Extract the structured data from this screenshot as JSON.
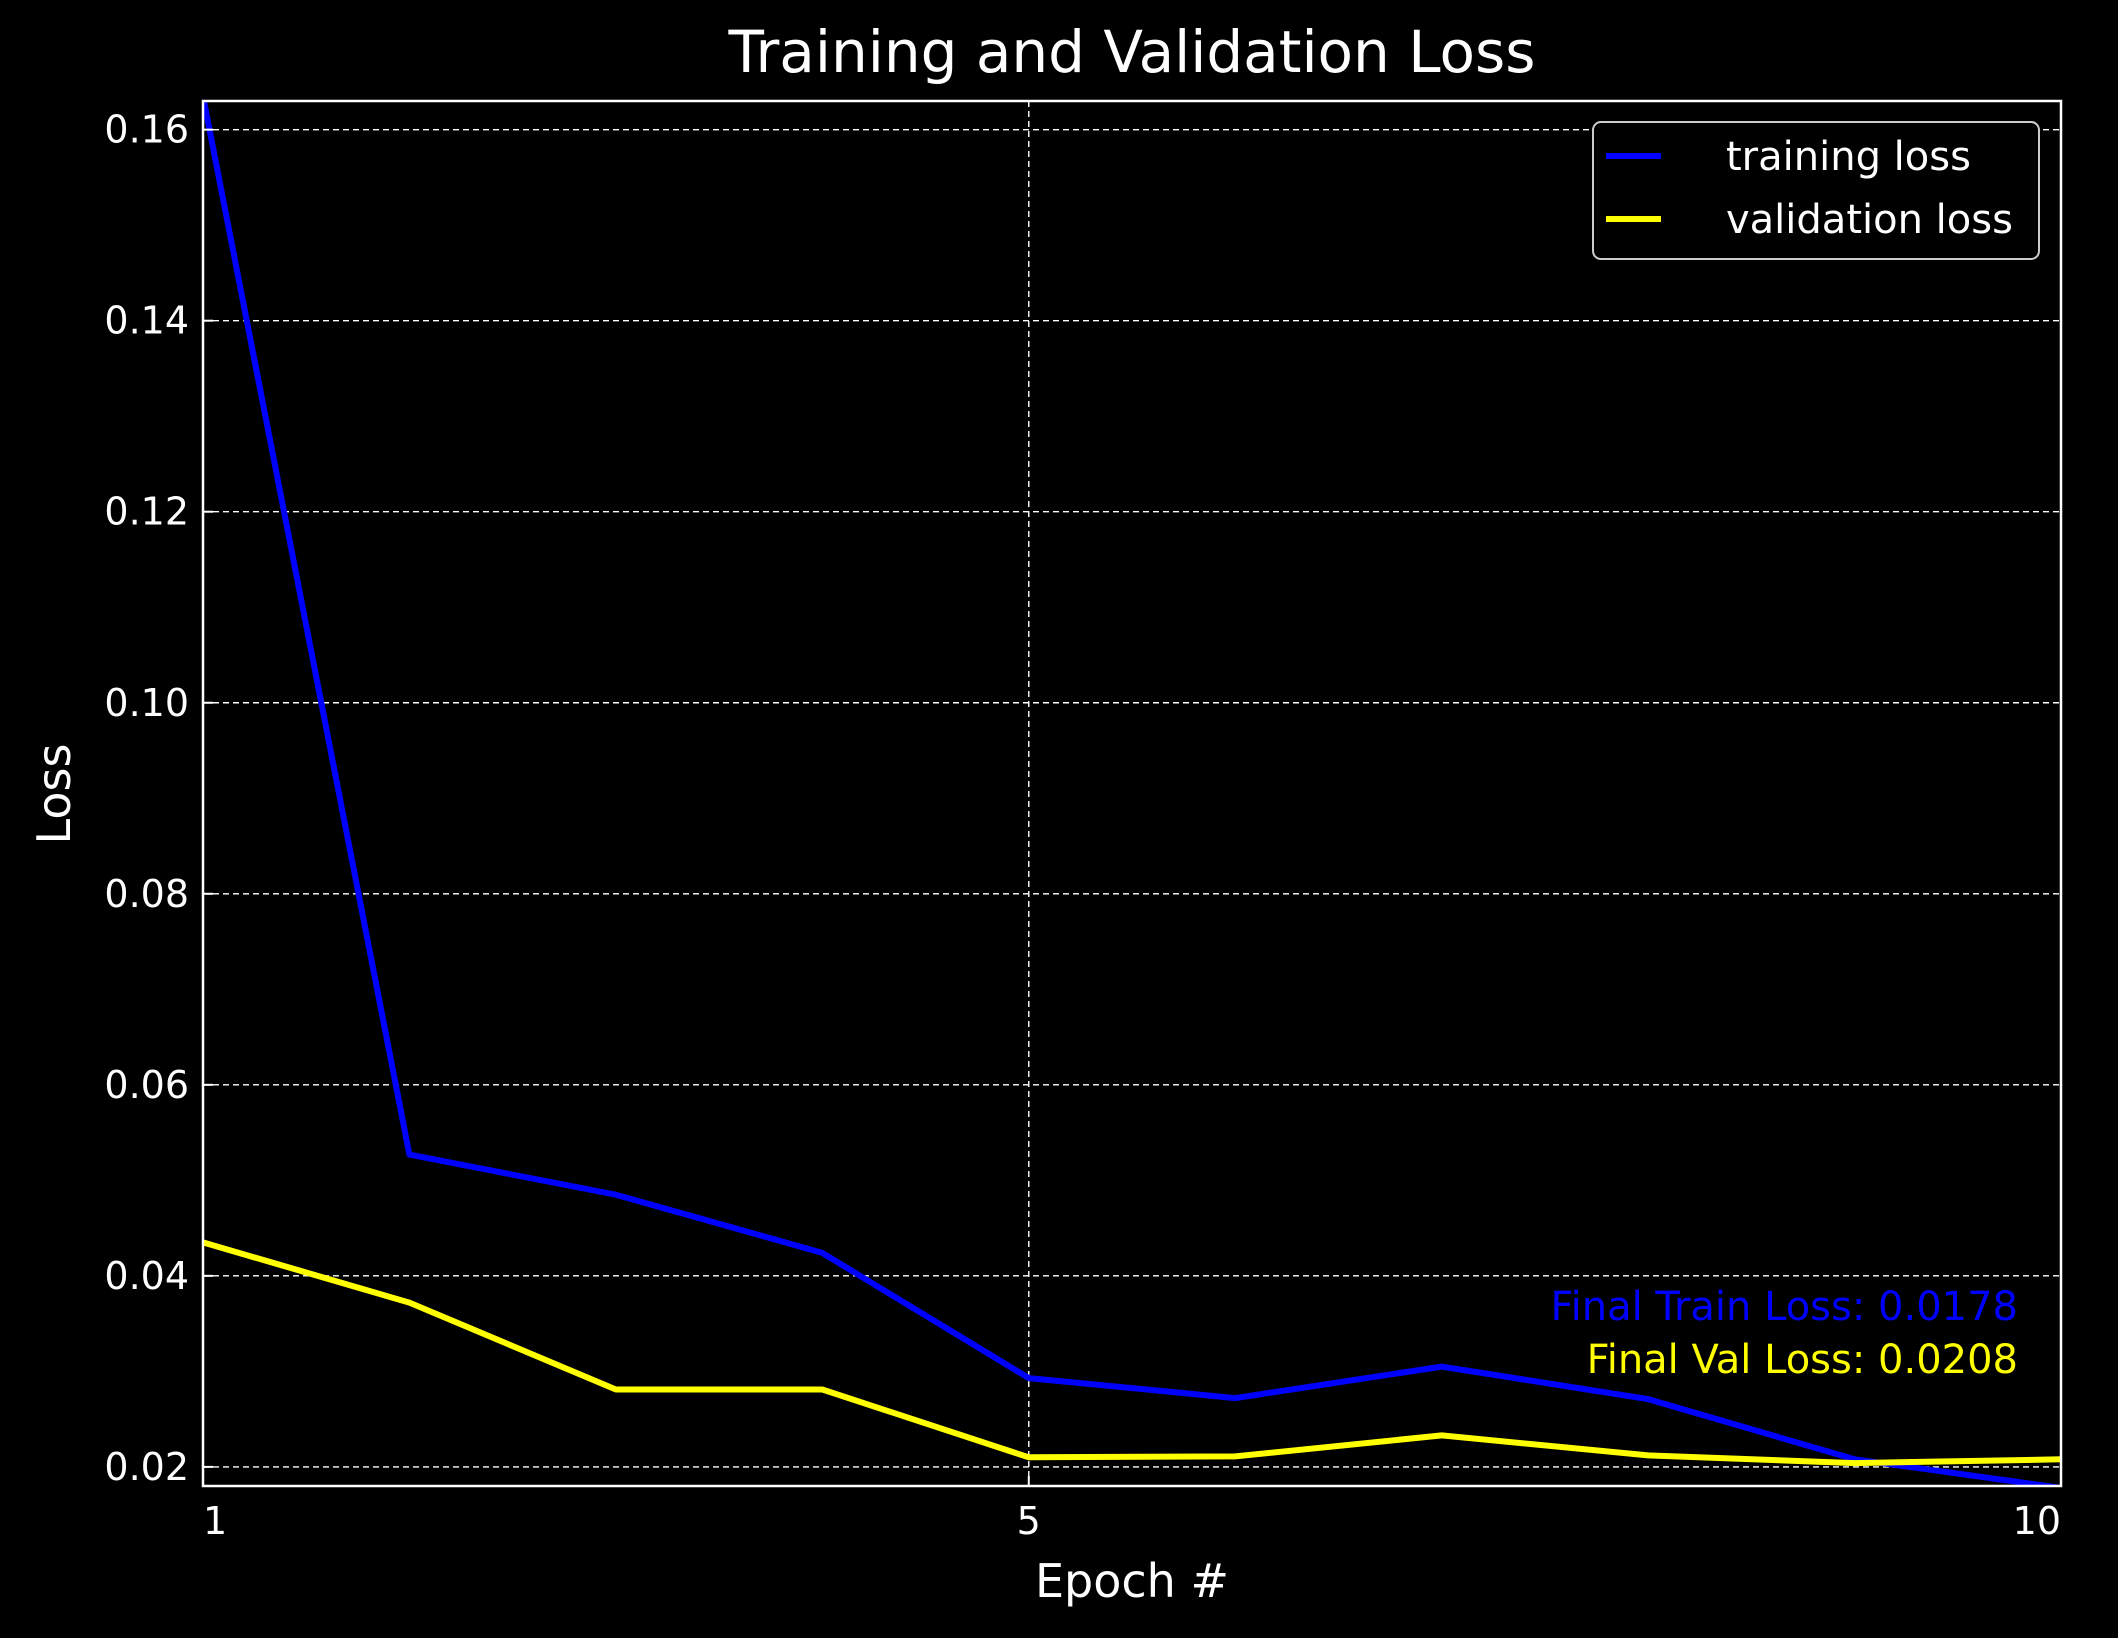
{
  "chart_data": {
    "type": "line",
    "title": "Training and Validation Loss",
    "xlabel": "Epoch #",
    "ylabel": "Loss",
    "x": [
      1,
      2,
      3,
      4,
      5,
      6,
      7,
      8,
      9,
      10
    ],
    "xlim": [
      1,
      10
    ],
    "ylim": [
      0.018,
      0.163
    ],
    "xticks": [
      1,
      5,
      10
    ],
    "yticks": [
      0.02,
      0.04,
      0.06,
      0.08,
      0.1,
      0.12,
      0.14,
      0.16
    ],
    "ytick_labels": [
      "0.02",
      "0.04",
      "0.06",
      "0.08",
      "0.10",
      "0.12",
      "0.14",
      "0.16"
    ],
    "grid": true,
    "legend_position": "top-right",
    "series": [
      {
        "name": "training loss",
        "color": "#0000ff",
        "values": [
          0.1635,
          0.0527,
          0.0485,
          0.0424,
          0.0293,
          0.0272,
          0.0305,
          0.0271,
          0.0208,
          0.0178
        ]
      },
      {
        "name": "validation loss",
        "color": "#ffff00",
        "values": [
          0.0435,
          0.0372,
          0.0281,
          0.0281,
          0.021,
          0.0211,
          0.0233,
          0.0212,
          0.0204,
          0.0208
        ]
      }
    ],
    "annotations": [
      {
        "text": "Final Train Loss: 0.0178",
        "color": "#0000ff"
      },
      {
        "text": "Final Val Loss: 0.0208",
        "color": "#ffff00"
      }
    ]
  }
}
